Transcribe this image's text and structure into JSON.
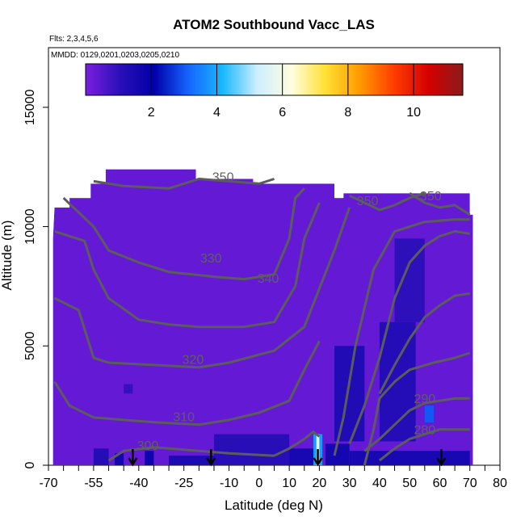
{
  "chart_data": {
    "type": "heatmap",
    "title": "ATOM2 Southbound Vacc_LAS",
    "flights_note": "Flts: 2,3,4,5,6",
    "dates_note": "MMDD: 0129,0201,0203,0205,0210",
    "xlabel": "Latitude (deg N)",
    "ylabel": "Altitude (m)",
    "xlim": [
      -70,
      80
    ],
    "ylim": [
      0,
      17500
    ],
    "x_ticks_labeled": [
      -70,
      -55,
      -40,
      -25,
      -10,
      0,
      10,
      20,
      30,
      40,
      50,
      60,
      70,
      80
    ],
    "x_ticks_minor": [
      -65,
      -60,
      -50,
      -45,
      -35,
      -30,
      -20,
      -15,
      -5,
      5,
      15,
      25,
      35,
      45,
      55,
      65,
      75
    ],
    "y_ticks": [
      0,
      5000,
      10000,
      15000
    ],
    "colorbar": {
      "range": [
        0,
        11.5
      ],
      "ticks": [
        2,
        4,
        6,
        8,
        10
      ],
      "colors": [
        "#7b1fe0",
        "#2a0fb8",
        "#0000a8",
        "#1565ff",
        "#19b8ff",
        "#cdeeff",
        "#fffde0",
        "#ffe033",
        "#ff9a00",
        "#ff3c00",
        "#d40000",
        "#8b1a1a"
      ]
    },
    "background_value": 0.3,
    "domain_outline": [
      [
        -68.5,
        0
      ],
      [
        -68.5,
        9500
      ],
      [
        -68,
        10800
      ],
      [
        -63,
        10800
      ],
      [
        -63,
        11200
      ],
      [
        -56,
        11200
      ],
      [
        -56,
        11800
      ],
      [
        -51,
        11800
      ],
      [
        -51,
        12400
      ],
      [
        -21,
        12400
      ],
      [
        -21,
        12000
      ],
      [
        -2,
        12000
      ],
      [
        -2,
        11800
      ],
      [
        25,
        11800
      ],
      [
        25,
        11200
      ],
      [
        28,
        11200
      ],
      [
        28,
        11400
      ],
      [
        70,
        11400
      ],
      [
        70,
        10500
      ],
      [
        71,
        10500
      ],
      [
        71,
        0
      ]
    ],
    "features": [
      {
        "lat": [
          -55,
          -50
        ],
        "alt": [
          0,
          700
        ],
        "value": 1.2
      },
      {
        "lat": [
          -48,
          -45
        ],
        "alt": [
          0,
          500
        ],
        "value": 1.6
      },
      {
        "lat": [
          -38,
          -35
        ],
        "alt": [
          0,
          600
        ],
        "value": 1.8
      },
      {
        "lat": [
          -30,
          -15
        ],
        "alt": [
          0,
          400
        ],
        "value": 1.4
      },
      {
        "lat": [
          -15,
          10
        ],
        "alt": [
          0,
          1300
        ],
        "value": 1.1
      },
      {
        "lat": [
          10,
          18
        ],
        "alt": [
          0,
          700
        ],
        "value": 1.5
      },
      {
        "lat": [
          18,
          21
        ],
        "alt": [
          0,
          1300
        ],
        "value": 3.8
      },
      {
        "lat": [
          19,
          20
        ],
        "alt": [
          0,
          1300
        ],
        "value": 5.6
      },
      {
        "lat": [
          22,
          30
        ],
        "alt": [
          0,
          900
        ],
        "value": 1.6
      },
      {
        "lat": [
          25,
          35
        ],
        "alt": [
          1000,
          5000
        ],
        "value": 1.3
      },
      {
        "lat": [
          40,
          52
        ],
        "alt": [
          1000,
          6000
        ],
        "value": 1.2
      },
      {
        "lat": [
          45,
          55
        ],
        "alt": [
          6000,
          9500
        ],
        "value": 1.0
      },
      {
        "lat": [
          55,
          58
        ],
        "alt": [
          1800,
          2500
        ],
        "value": 3.0
      },
      {
        "lat": [
          30,
          70
        ],
        "alt": [
          0,
          600
        ],
        "value": 1.5
      },
      {
        "lat": [
          -45,
          -42
        ],
        "alt": [
          3000,
          3400
        ],
        "value": 0.9
      }
    ],
    "contours": [
      {
        "label": "300",
        "label_pos": [
          -37,
          650
        ],
        "points": [
          [
            -50,
            200
          ],
          [
            -45,
            600
          ],
          [
            -35,
            750
          ],
          [
            -20,
            600
          ],
          [
            -10,
            500
          ],
          [
            5,
            400
          ],
          [
            10,
            700
          ],
          [
            15,
            1100
          ],
          [
            18,
            1400
          ],
          [
            20,
            1200
          ]
        ]
      },
      {
        "label": "310",
        "label_pos": [
          -25,
          1850
        ],
        "points": [
          [
            -68,
            3500
          ],
          [
            -63,
            2500
          ],
          [
            -55,
            2000
          ],
          [
            -45,
            1900
          ],
          [
            -35,
            1800
          ],
          [
            -20,
            1700
          ],
          [
            -10,
            1900
          ],
          [
            0,
            2200
          ],
          [
            10,
            2700
          ],
          [
            15,
            4000
          ],
          [
            20,
            5200
          ]
        ]
      },
      {
        "label": "320",
        "label_pos": [
          -22,
          4250
        ],
        "points": [
          [
            -68,
            7000
          ],
          [
            -60,
            6500
          ],
          [
            -55,
            4500
          ],
          [
            -50,
            4300
          ],
          [
            -35,
            4200
          ],
          [
            -20,
            4100
          ],
          [
            -10,
            4300
          ],
          [
            5,
            4800
          ],
          [
            15,
            5800
          ],
          [
            25,
            9000
          ],
          [
            30,
            10800
          ]
        ]
      },
      {
        "label": "330",
        "label_pos": [
          -16,
          8500
        ],
        "points": [
          [
            -68,
            9800
          ],
          [
            -58,
            9400
          ],
          [
            -55,
            8200
          ],
          [
            -50,
            7000
          ],
          [
            -40,
            6100
          ],
          [
            -30,
            5900
          ],
          [
            -20,
            5800
          ],
          [
            -5,
            5800
          ],
          [
            5,
            6000
          ],
          [
            12,
            7500
          ],
          [
            15,
            9500
          ],
          [
            20,
            11000
          ]
        ]
      },
      {
        "label": "340",
        "label_pos": [
          3,
          7650
        ],
        "points": [
          [
            -65,
            11200
          ],
          [
            -55,
            10000
          ],
          [
            -50,
            9000
          ],
          [
            -40,
            8500
          ],
          [
            -30,
            8100
          ],
          [
            -15,
            7900
          ],
          [
            -5,
            7800
          ],
          [
            5,
            8000
          ],
          [
            10,
            9500
          ],
          [
            12,
            11200
          ],
          [
            15,
            11600
          ]
        ]
      },
      {
        "label": "350",
        "label_pos": [
          -12,
          11900
        ],
        "points": [
          [
            -55,
            11900
          ],
          [
            -45,
            11700
          ],
          [
            -30,
            11600
          ],
          [
            -20,
            12000
          ],
          [
            -10,
            11900
          ],
          [
            0,
            11800
          ],
          [
            5,
            12000
          ]
        ]
      },
      {
        "label": "350",
        "label_pos": [
          36,
          10900
        ],
        "points": [
          [
            30,
            11300
          ],
          [
            35,
            11000
          ],
          [
            40,
            10700
          ],
          [
            45,
            10900
          ],
          [
            50,
            11200
          ],
          [
            55,
            11400
          ]
        ]
      },
      {
        "label": "350",
        "label_pos": [
          57,
          11100
        ],
        "points": [
          [
            50,
            11400
          ],
          [
            55,
            11000
          ],
          [
            60,
            10800
          ],
          [
            65,
            10900
          ],
          [
            70,
            10500
          ]
        ]
      },
      {
        "label": "290",
        "label_pos": [
          55,
          2600
        ],
        "points": [
          [
            35,
            600
          ],
          [
            40,
            1100
          ],
          [
            45,
            1700
          ],
          [
            50,
            2300
          ],
          [
            55,
            2600
          ],
          [
            60,
            2700
          ],
          [
            65,
            2800
          ],
          [
            70,
            2800
          ]
        ]
      },
      {
        "label": "280",
        "label_pos": [
          55,
          1300
        ],
        "points": [
          [
            40,
            200
          ],
          [
            45,
            700
          ],
          [
            50,
            1100
          ],
          [
            55,
            1300
          ],
          [
            60,
            1500
          ],
          [
            65,
            1500
          ],
          [
            70,
            1500
          ]
        ]
      },
      {
        "label": "",
        "label_pos": [
          0,
          0
        ],
        "points": [
          [
            30,
            900
          ],
          [
            35,
            2500
          ],
          [
            40,
            4500
          ],
          [
            45,
            7000
          ],
          [
            50,
            8500
          ],
          [
            55,
            9200
          ],
          [
            60,
            9600
          ],
          [
            65,
            9800
          ],
          [
            70,
            9700
          ]
        ]
      },
      {
        "label": "",
        "label_pos": [
          0,
          0
        ],
        "points": [
          [
            25,
            400
          ],
          [
            28,
            2000
          ],
          [
            32,
            5000
          ],
          [
            38,
            8200
          ],
          [
            45,
            9800
          ],
          [
            55,
            10200
          ],
          [
            65,
            10300
          ],
          [
            70,
            10300
          ]
        ]
      },
      {
        "label": "",
        "label_pos": [
          0,
          0
        ],
        "points": [
          [
            40,
            3000
          ],
          [
            45,
            4200
          ],
          [
            50,
            5300
          ],
          [
            55,
            6200
          ],
          [
            60,
            6700
          ],
          [
            65,
            7100
          ],
          [
            70,
            7200
          ]
        ]
      },
      {
        "label": "",
        "label_pos": [
          0,
          0
        ],
        "points": [
          [
            35,
            0
          ],
          [
            38,
            1500
          ],
          [
            40,
            2800
          ],
          [
            45,
            3500
          ],
          [
            50,
            4000
          ],
          [
            58,
            4300
          ],
          [
            65,
            4500
          ],
          [
            70,
            4700
          ]
        ]
      }
    ],
    "arrows_lat": [
      -42,
      -16,
      19.5,
      60.5
    ]
  }
}
